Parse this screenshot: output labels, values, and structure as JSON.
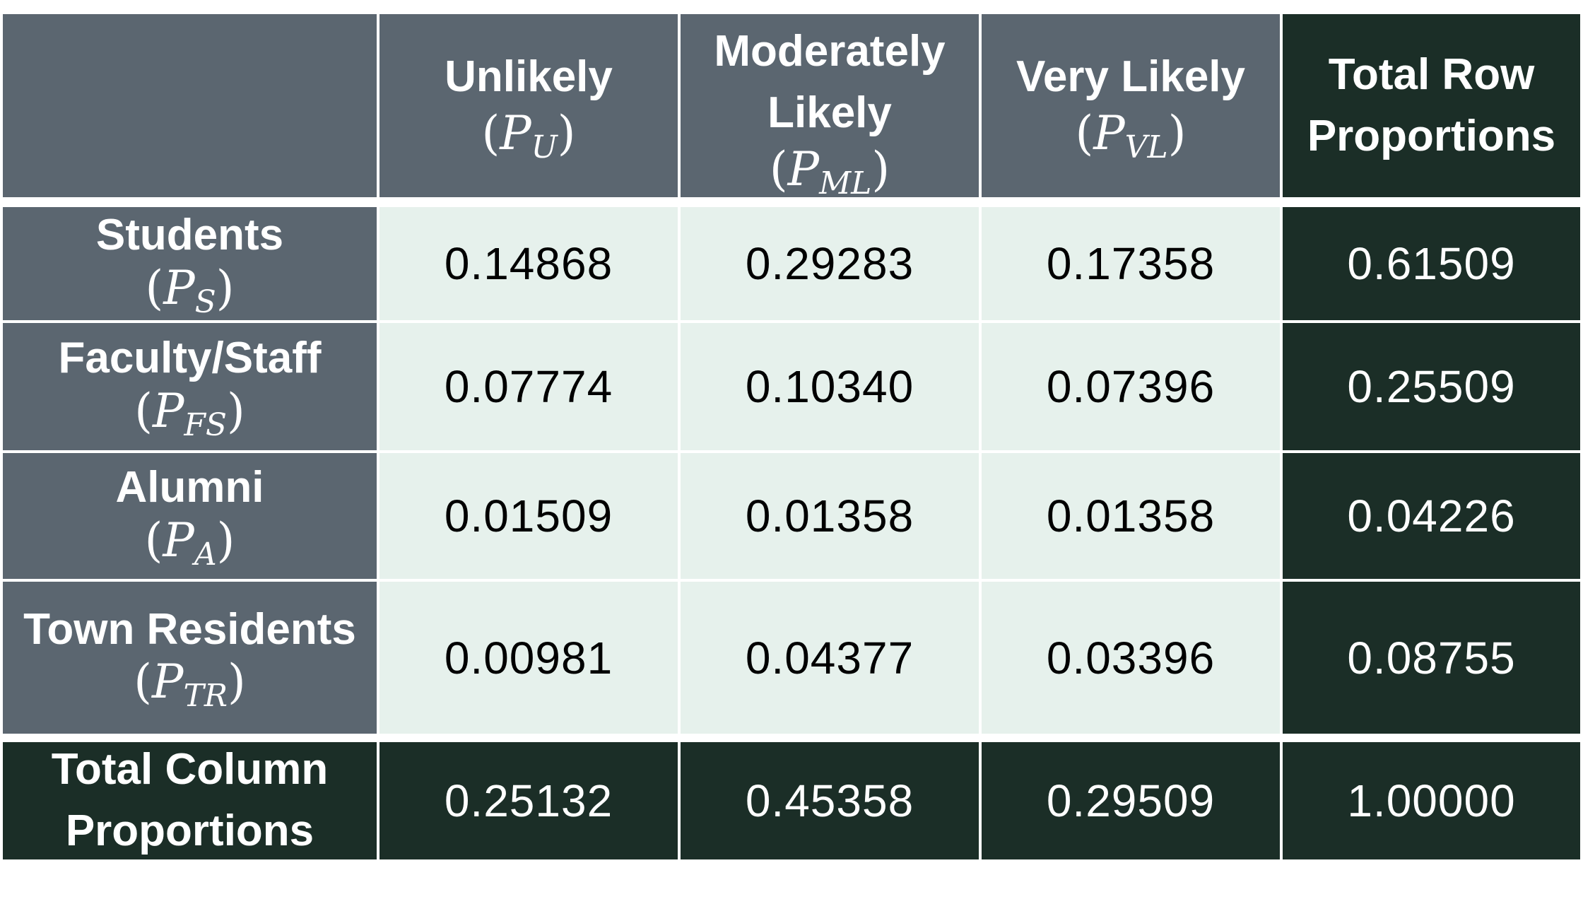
{
  "columns": [
    {
      "label": "Unlikely",
      "symbol": "P",
      "subscript": "U"
    },
    {
      "label": "Moderately Likely",
      "symbol": "P",
      "subscript": "ML"
    },
    {
      "label": "Very Likely",
      "symbol": "P",
      "subscript": "VL"
    }
  ],
  "total_row_header": "Total Row Proportions",
  "rows": [
    {
      "label": "Students",
      "symbol": "P",
      "subscript": "S",
      "values": [
        "0.14868",
        "0.29283",
        "0.17358"
      ],
      "total": "0.61509"
    },
    {
      "label": "Faculty/Staff",
      "symbol": "P",
      "subscript": "FS",
      "values": [
        "0.07774",
        "0.10340",
        "0.07396"
      ],
      "total": "0.25509"
    },
    {
      "label": "Alumni",
      "symbol": "P",
      "subscript": "A",
      "values": [
        "0.01509",
        "0.01358",
        "0.01358"
      ],
      "total": "0.04226"
    },
    {
      "label": "Town Residents",
      "symbol": "P",
      "subscript": "TR",
      "values": [
        "0.00981",
        "0.04377",
        "0.03396"
      ],
      "total": "0.08755"
    }
  ],
  "totals": {
    "label": "Total Column Proportions",
    "values": [
      "0.25132",
      "0.45358",
      "0.29509"
    ],
    "grand_total": "1.00000"
  },
  "colors": {
    "header": "#5b6670",
    "dark": "#1b2e27",
    "light": "#e6f1ec"
  }
}
